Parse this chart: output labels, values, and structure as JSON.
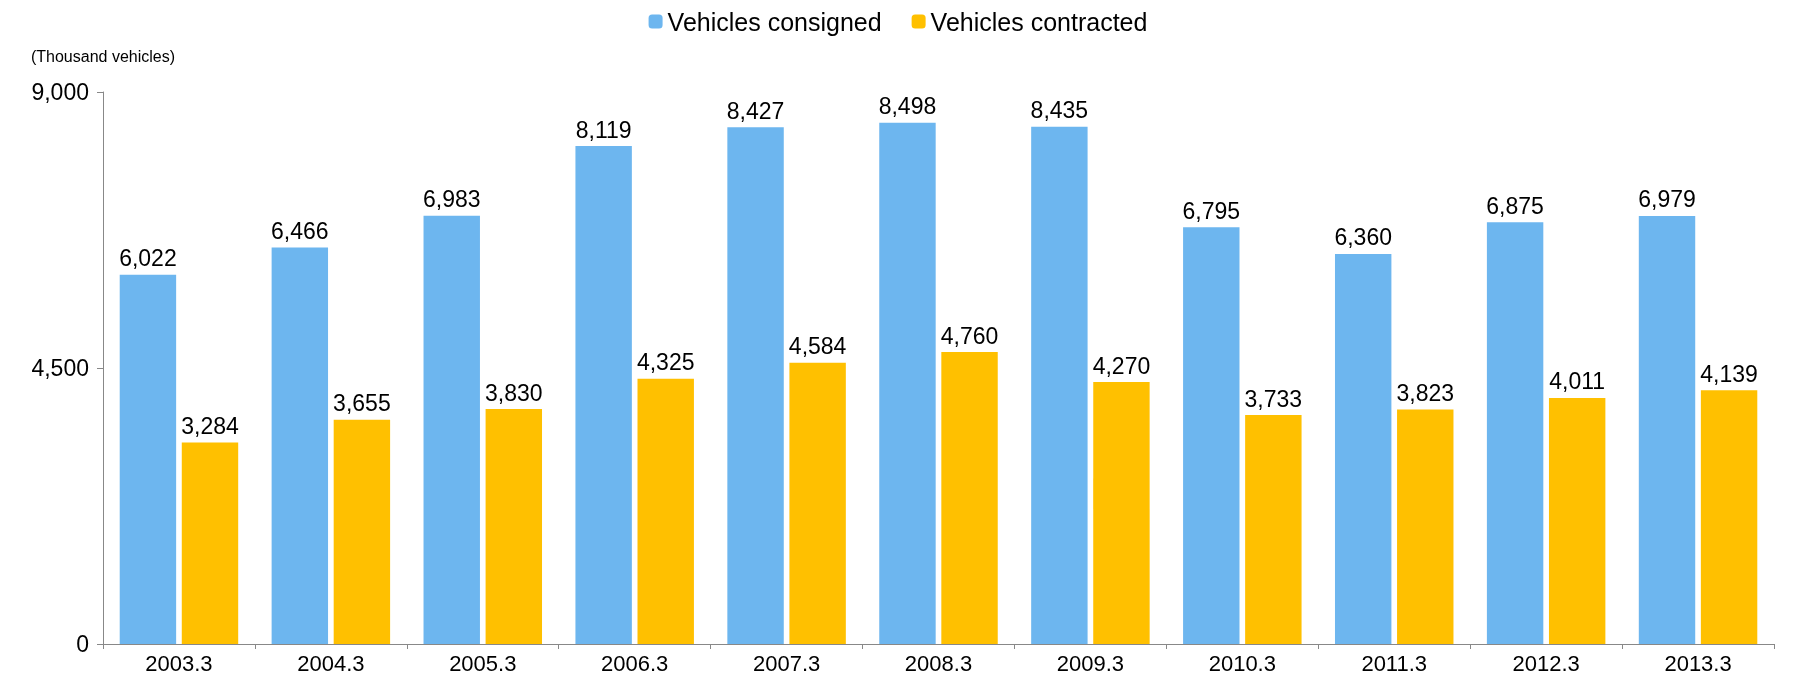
{
  "chart_data": {
    "type": "bar",
    "ylabel": "(Thousand vehicles)",
    "categories": [
      "2003.3",
      "2004.3",
      "2005.3",
      "2006.3",
      "2007.3",
      "2008.3",
      "2009.3",
      "2010.3",
      "2011.3",
      "2012.3",
      "2013.3"
    ],
    "series": [
      {
        "name": "Vehicles consigned",
        "color": "#6db6ef",
        "values": [
          6022,
          6466,
          6983,
          8119,
          8427,
          8498,
          8435,
          6795,
          6360,
          6875,
          6979
        ],
        "value_labels": [
          "6,022",
          "6,466",
          "6,983",
          "8,119",
          "8,427",
          "8,498",
          "8,435",
          "6,795",
          "6,360",
          "6,875",
          "6,979"
        ]
      },
      {
        "name": "Vehicles contracted",
        "color": "#ffc000",
        "values": [
          3284,
          3655,
          3830,
          4325,
          4584,
          4760,
          4270,
          3733,
          3823,
          4011,
          4139
        ],
        "value_labels": [
          "3,284",
          "3,655",
          "3,830",
          "4,325",
          "4,584",
          "4,760",
          "4,270",
          "3,733",
          "3,823",
          "4,011",
          "4,139"
        ]
      }
    ],
    "ylim": [
      0,
      9000
    ],
    "yticks": [
      {
        "value": 0,
        "label": "0"
      },
      {
        "value": 4500,
        "label": "4,500"
      },
      {
        "value": 9000,
        "label": "9,000"
      }
    ],
    "grid": false,
    "legend": "top"
  }
}
